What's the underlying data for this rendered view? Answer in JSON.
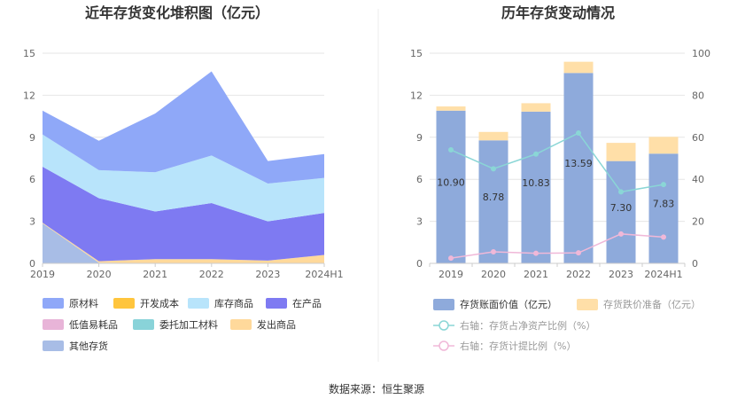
{
  "source_label": "数据来源：恒生聚源",
  "chart_data": [
    {
      "type": "area",
      "title": "近年存货变化堆积图（亿元）",
      "categories": [
        "2019",
        "2020",
        "2021",
        "2022",
        "2023",
        "2024H1"
      ],
      "ylim": [
        0,
        15
      ],
      "yticks": [
        0,
        3,
        6,
        9,
        12,
        15
      ],
      "grid": true,
      "legend_position": "bottom",
      "series": [
        {
          "name": "原材料",
          "color": "#8fa8f8",
          "values": [
            1.7,
            2.1,
            4.2,
            6.0,
            1.6,
            1.7
          ]
        },
        {
          "name": "开发成本",
          "color": "#ffc53d",
          "values": [
            0,
            0,
            0,
            0,
            0,
            0
          ]
        },
        {
          "name": "库存商品",
          "color": "#b8e4fb",
          "values": [
            2.3,
            2.0,
            2.8,
            3.4,
            2.7,
            2.5
          ]
        },
        {
          "name": "在产品",
          "color": "#7e7af2",
          "values": [
            4.0,
            4.5,
            3.4,
            4.0,
            2.8,
            3.0
          ]
        },
        {
          "name": "低值易耗品",
          "color": "#e8b4d8",
          "values": [
            0,
            0,
            0,
            0,
            0,
            0
          ]
        },
        {
          "name": "委托加工材料",
          "color": "#89d3d9",
          "values": [
            0,
            0,
            0,
            0,
            0,
            0
          ]
        },
        {
          "name": "发出商品",
          "color": "#ffd99b",
          "values": [
            0.05,
            0.1,
            0.3,
            0.3,
            0.2,
            0.6
          ]
        },
        {
          "name": "其他存货",
          "color": "#a8bde6",
          "values": [
            2.85,
            0.05,
            0,
            0,
            0,
            0
          ]
        }
      ]
    },
    {
      "type": "bar",
      "title": "历年存货变动情况",
      "categories": [
        "2019",
        "2020",
        "2021",
        "2022",
        "2023",
        "2024H1"
      ],
      "ylim": [
        0,
        15
      ],
      "yticks": [
        0,
        3,
        6,
        9,
        12,
        15
      ],
      "y2lim": [
        0,
        100
      ],
      "y2ticks": [
        0,
        20,
        40,
        60,
        80,
        100
      ],
      "grid": true,
      "legend_position": "bottom",
      "series": [
        {
          "name": "存货账面价值（亿元）",
          "color": "#8eaadb",
          "type": "bar",
          "values": [
            10.9,
            8.78,
            10.83,
            13.59,
            7.3,
            7.83
          ]
        },
        {
          "name": "存货跌价准备（亿元）",
          "color": "#ffdfa8",
          "type": "bar",
          "values": [
            0.3,
            0.6,
            0.6,
            0.8,
            1.3,
            1.2
          ]
        },
        {
          "name": "右轴：存货占净资产比例（%）",
          "color": "#8ad6d6",
          "type": "line",
          "axis": "right",
          "values": [
            54,
            45,
            52,
            62,
            34,
            37.5
          ]
        },
        {
          "name": "右轴：存货计提比例（%）",
          "color": "#f0b8d8",
          "type": "line",
          "axis": "right",
          "values": [
            2.5,
            5.5,
            4.8,
            5.0,
            14,
            12.5
          ]
        }
      ],
      "data_labels": [
        "10.90",
        "8.78",
        "10.83",
        "13.59",
        "7.30",
        "7.83"
      ]
    }
  ]
}
